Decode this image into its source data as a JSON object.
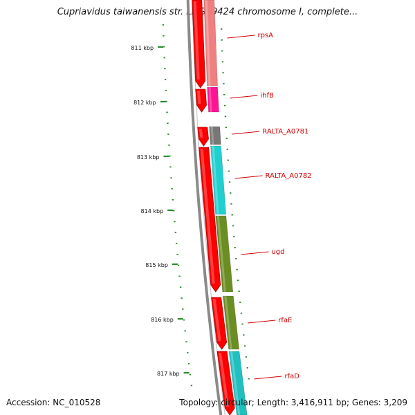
{
  "title": "Cupriavidus taiwanensis str. LMG19424 chromosome I, complete...",
  "footer": {
    "accession_label": "Accession:",
    "accession": "NC_010528",
    "topology_label": "Topology:",
    "topology": "circular",
    "length_label": "Length:",
    "length": "3,416,911 bp",
    "genes_label": "Genes:",
    "genes": "3,209"
  },
  "colors": {
    "backbone": "#8a8a8a",
    "ruler": "#2e8b2e",
    "gene_label": "#d00000",
    "cds_arrow": "#ff0000"
  },
  "ruler": {
    "unit": "kbp",
    "ticks": [
      "811 kbp",
      "812 kbp",
      "813 kbp",
      "814 kbp",
      "815 kbp",
      "816 kbp",
      "817 kbp"
    ]
  },
  "genes": [
    {
      "name": "rpsA",
      "feature_color": "#f08080"
    },
    {
      "name": "ihfB",
      "feature_color": "#ff1493"
    },
    {
      "name": "RALTA_A0781",
      "feature_color": "#777777"
    },
    {
      "name": "RALTA_A0782",
      "feature_color": "#20d0d0"
    },
    {
      "name": "ugd",
      "feature_color": "#6b8e23"
    },
    {
      "name": "rfaE",
      "feature_color": "#6b8e23"
    },
    {
      "name": "rfaD",
      "feature_color": "#20c0c0"
    }
  ]
}
